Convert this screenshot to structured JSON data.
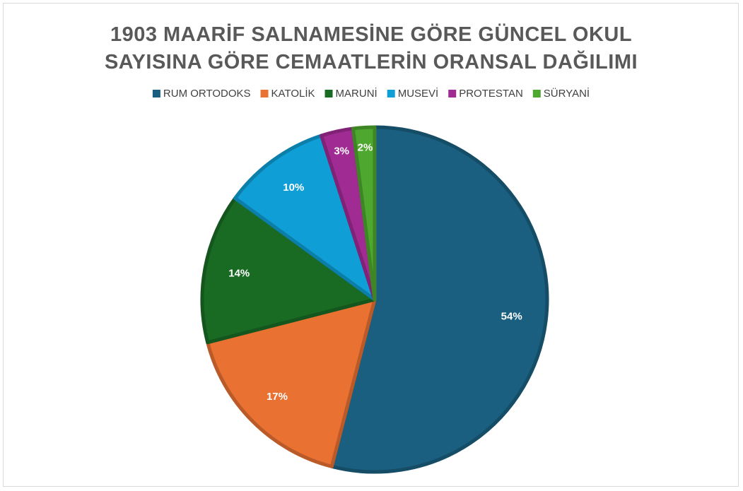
{
  "chart_data": {
    "type": "pie",
    "title": [
      "1903 MAARİF SALNAMESİNE GÖRE GÜNCEL OKUL",
      "SAYISINA GÖRE CEMAATLERİN ORANSAL DAĞILIMI"
    ],
    "categories": [
      "RUM ORTODOKS",
      "KATOLİK",
      "MARUNİ",
      "MUSEVİ",
      "PROTESTAN",
      "SÜRYANİ"
    ],
    "values": [
      54,
      17,
      14,
      10,
      3,
      2
    ],
    "value_labels": [
      "54%",
      "17%",
      "14%",
      "10%",
      "3%",
      "2%"
    ],
    "colors": [
      "#1a5f80",
      "#e97132",
      "#196b24",
      "#0f9ed5",
      "#a02b93",
      "#4ea72e"
    ],
    "legend": "top"
  }
}
